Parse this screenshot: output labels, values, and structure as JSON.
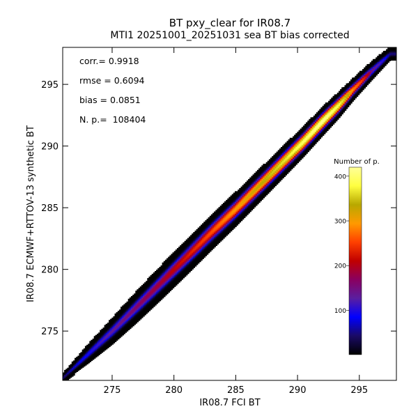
{
  "chart_data": {
    "type": "heatmap",
    "title": "BT pxy_clear for IR08.7",
    "subtitle": "MTI1 20251001_20251031 sea BT bias corrected",
    "xlabel": "IR08.7 FCI BT",
    "ylabel": "IR08.7 ECMWF+RTTOV-13 synthetic BT",
    "xlim": [
      271,
      298
    ],
    "ylim": [
      271,
      298
    ],
    "xticks": [
      275,
      280,
      285,
      290,
      295
    ],
    "yticks": [
      275,
      280,
      285,
      290,
      295
    ],
    "grid": false,
    "stats": [
      {
        "label": "corr.=",
        "value": "0.9918"
      },
      {
        "label": "rmse =",
        "value": "0.6094"
      },
      {
        "label": "bias =",
        "value": "0.0851"
      },
      {
        "label": "N. p.=",
        "value": "108404"
      }
    ],
    "colorbar": {
      "title": "Number of p.",
      "range": [
        1,
        420
      ],
      "ticks": [
        100,
        200,
        300,
        400
      ],
      "colormap": [
        "#000000",
        "#1a0a66",
        "#0000ff",
        "#5a1ea0",
        "#8a0060",
        "#c00000",
        "#ff4000",
        "#ff9a00",
        "#b8a800",
        "#ffff40",
        "#ffff99"
      ]
    },
    "density_ridge": [
      {
        "x": 271.0,
        "y": 271.2,
        "halfwidth": 0.4,
        "peak": 1
      },
      {
        "x": 273.0,
        "y": 273.1,
        "halfwidth": 0.8,
        "peak": 3
      },
      {
        "x": 275.0,
        "y": 275.0,
        "halfwidth": 1.1,
        "peak": 6
      },
      {
        "x": 277.0,
        "y": 277.0,
        "halfwidth": 1.3,
        "peak": 10
      },
      {
        "x": 279.0,
        "y": 279.0,
        "halfwidth": 1.4,
        "peak": 15
      },
      {
        "x": 281.0,
        "y": 281.0,
        "halfwidth": 1.45,
        "peak": 25
      },
      {
        "x": 283.0,
        "y": 283.0,
        "halfwidth": 1.45,
        "peak": 40
      },
      {
        "x": 285.0,
        "y": 284.9,
        "halfwidth": 1.4,
        "peak": 70
      },
      {
        "x": 287.0,
        "y": 286.9,
        "halfwidth": 1.35,
        "peak": 120
      },
      {
        "x": 289.0,
        "y": 288.9,
        "halfwidth": 1.3,
        "peak": 200
      },
      {
        "x": 290.5,
        "y": 290.4,
        "halfwidth": 1.25,
        "peak": 300
      },
      {
        "x": 292.0,
        "y": 292.0,
        "halfwidth": 1.2,
        "peak": 415
      },
      {
        "x": 293.3,
        "y": 293.3,
        "halfwidth": 1.1,
        "peak": 250
      },
      {
        "x": 294.5,
        "y": 294.6,
        "halfwidth": 0.95,
        "peak": 60
      },
      {
        "x": 296.0,
        "y": 296.1,
        "halfwidth": 0.8,
        "peak": 8
      },
      {
        "x": 297.5,
        "y": 297.5,
        "halfwidth": 0.6,
        "peak": 1
      }
    ]
  }
}
